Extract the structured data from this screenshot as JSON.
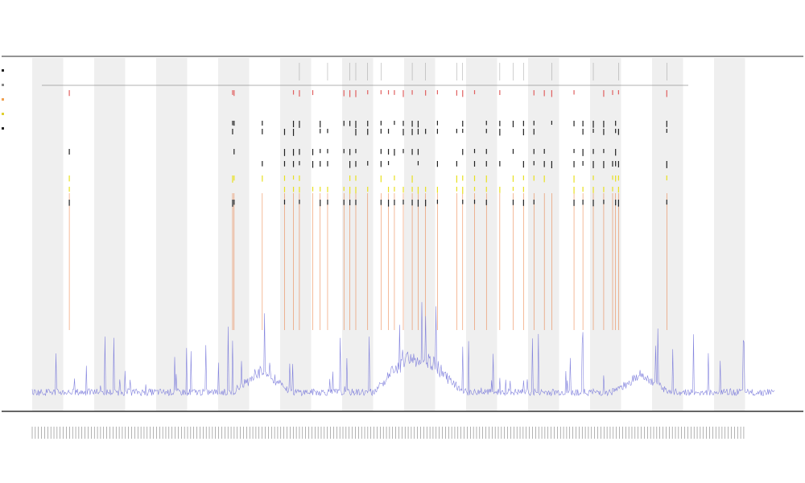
{
  "chart_data": {
    "type": "line",
    "title": "",
    "subtitles": [
      "",
      ""
    ],
    "xlabel": "",
    "ylabel": "",
    "grid": false,
    "legend_placement": "top-left",
    "legend": [
      {
        "name": "",
        "color": "#222222"
      },
      {
        "name": "",
        "color": "#888888"
      },
      {
        "name": "",
        "color": "#f0a050"
      },
      {
        "name": "",
        "color": "#e0d030"
      },
      {
        "name": "",
        "color": "#222222"
      }
    ],
    "colors": {
      "band": "#efefef",
      "signal": "#6f6fd8",
      "peak": "#e86820",
      "marker_yellow": "#e8e020",
      "marker_dark": "#222222",
      "marker_red": "#e06060"
    },
    "x_range": [
      0,
      1000
    ],
    "y_range": [
      0,
      100
    ],
    "baseline": 4,
    "band_count": 12,
    "signal_bumps": [
      {
        "x": 310,
        "height": 8
      },
      {
        "x": 500,
        "height": 12
      },
      {
        "x": 540,
        "height": 10
      },
      {
        "x": 820,
        "height": 6
      }
    ],
    "peaks": [
      50,
      270,
      272,
      310,
      340,
      352,
      360,
      378,
      388,
      398,
      420,
      428,
      436,
      452,
      470,
      480,
      488,
      500,
      512,
      520,
      530,
      546,
      572,
      580,
      596,
      612,
      630,
      648,
      662,
      676,
      690,
      700,
      730,
      742,
      756,
      770,
      782,
      786,
      790,
      855
    ]
  }
}
